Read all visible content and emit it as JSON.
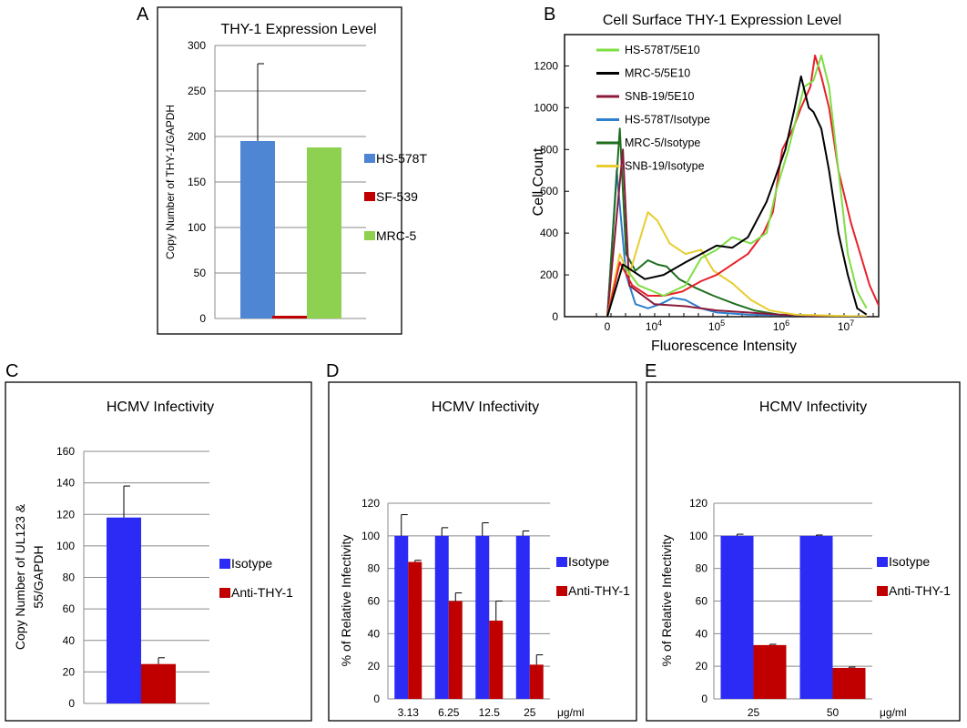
{
  "colors": {
    "hs578t": "#4f86d4",
    "sf539": "#c00000",
    "mrc5": "#8ed150",
    "isotype": "#2b2bf5",
    "anti": "#c00000"
  },
  "panelB_colors": [
    "#7ede42",
    "#000000",
    "#8b1a3a",
    "#2e7fcc",
    "#1f6e1f",
    "#e8cc30"
  ],
  "panelB_extra_red": "#e8202a",
  "chart_data": [
    {
      "panel": "A",
      "type": "bar",
      "title": "THY-1  Expression Level",
      "ylabel": "Copy Number of THY-1/GAPDH",
      "ylim": [
        0,
        300
      ],
      "yticks": [
        "0",
        "50",
        "100",
        "150",
        "200",
        "250",
        "300"
      ],
      "series": [
        {
          "name": "HS-578T",
          "value": 195,
          "error": 85
        },
        {
          "name": "SF-539",
          "value": 3,
          "error": 0
        },
        {
          "name": "MRC-5",
          "value": 188,
          "error": 0
        }
      ],
      "grid": true,
      "legend": "right"
    },
    {
      "panel": "B",
      "type": "line",
      "title": "Cell Surface THY-1  Expression Level",
      "xlabel": "Fluorescence Intensity",
      "ylabel": "Cell Count",
      "xscale": "log",
      "yticks": [
        "0",
        "200",
        "400",
        "600",
        "800",
        "1000",
        "1200"
      ],
      "xtick_labels": [
        {
          "base": "0",
          "exp": ""
        },
        {
          "base": "10",
          "exp": "4"
        },
        {
          "base": "10",
          "exp": "5"
        },
        {
          "base": "10",
          "exp": "6"
        },
        {
          "base": "10",
          "exp": "7"
        }
      ],
      "legend": "top-left",
      "series": [
        {
          "name": "HS-578T/5E10",
          "points": [
            [
              0,
              0
            ],
            [
              0.5,
              250
            ],
            [
              1,
              150
            ],
            [
              1.8,
              100
            ],
            [
              2.5,
              150
            ],
            [
              3,
              280
            ],
            [
              3.5,
              320
            ],
            [
              4,
              380
            ],
            [
              4.6,
              350
            ],
            [
              5.1,
              400
            ],
            [
              5.4,
              600
            ],
            [
              5.8,
              800
            ],
            [
              6.3,
              1100
            ],
            [
              6.6,
              1130
            ],
            [
              6.85,
              1250
            ],
            [
              7.1,
              1100
            ],
            [
              7.4,
              700
            ],
            [
              7.7,
              300
            ],
            [
              8.0,
              120
            ],
            [
              8.3,
              40
            ]
          ]
        },
        {
          "name": "MRC-5/5E10",
          "points": [
            [
              0,
              0
            ],
            [
              0.5,
              250
            ],
            [
              1.2,
              180
            ],
            [
              1.8,
              200
            ],
            [
              2.5,
              260
            ],
            [
              3,
              300
            ],
            [
              3.5,
              340
            ],
            [
              4,
              330
            ],
            [
              4.5,
              380
            ],
            [
              5.1,
              550
            ],
            [
              5.7,
              800
            ],
            [
              6.0,
              1000
            ],
            [
              6.2,
              1150
            ],
            [
              6.45,
              1000
            ],
            [
              6.6,
              980
            ],
            [
              6.85,
              900
            ],
            [
              7.1,
              700
            ],
            [
              7.4,
              400
            ],
            [
              7.7,
              200
            ],
            [
              8.0,
              40
            ],
            [
              8.3,
              10
            ]
          ]
        },
        {
          "name": "SNB-19/5E10",
          "points": [
            [
              0,
              0
            ],
            [
              0.5,
              800
            ],
            [
              0.7,
              150
            ],
            [
              1.5,
              60
            ],
            [
              2.5,
              50
            ],
            [
              3.5,
              30
            ],
            [
              4.5,
              20
            ],
            [
              5.5,
              10
            ],
            [
              6.5,
              5
            ],
            [
              8.3,
              0
            ]
          ]
        },
        {
          "name": "HS-578T/Isotype",
          "points": [
            [
              0,
              0
            ],
            [
              0.3,
              700
            ],
            [
              0.45,
              450
            ],
            [
              0.6,
              200
            ],
            [
              0.9,
              60
            ],
            [
              1.3,
              40
            ],
            [
              1.7,
              60
            ],
            [
              2.1,
              90
            ],
            [
              2.5,
              80
            ],
            [
              3,
              40
            ],
            [
              3.5,
              20
            ],
            [
              4.5,
              10
            ],
            [
              8.3,
              0
            ]
          ]
        },
        {
          "name": "MRC-5/Isotype",
          "points": [
            [
              0,
              0
            ],
            [
              0.4,
              900
            ],
            [
              0.6,
              300
            ],
            [
              0.9,
              220
            ],
            [
              1.3,
              270
            ],
            [
              1.6,
              250
            ],
            [
              1.9,
              240
            ],
            [
              2.3,
              180
            ],
            [
              2.8,
              140
            ],
            [
              3.4,
              100
            ],
            [
              4.1,
              60
            ],
            [
              4.7,
              30
            ],
            [
              5.5,
              10
            ],
            [
              8.3,
              0
            ]
          ]
        },
        {
          "name": "SNB-19/Isotype",
          "points": [
            [
              0,
              0
            ],
            [
              0.4,
              300
            ],
            [
              0.7,
              200
            ],
            [
              1,
              350
            ],
            [
              1.3,
              500
            ],
            [
              1.6,
              460
            ],
            [
              2,
              350
            ],
            [
              2.5,
              300
            ],
            [
              3,
              320
            ],
            [
              3.4,
              220
            ],
            [
              4,
              160
            ],
            [
              4.6,
              80
            ],
            [
              5.2,
              30
            ],
            [
              6,
              10
            ],
            [
              8.3,
              0
            ]
          ]
        },
        {
          "name": "",
          "points": [
            [
              0,
              0
            ],
            [
              0.4,
              260
            ],
            [
              0.8,
              150
            ],
            [
              1.3,
              100
            ],
            [
              1.8,
              100
            ],
            [
              2.4,
              120
            ],
            [
              3,
              170
            ],
            [
              3.5,
              200
            ],
            [
              4,
              250
            ],
            [
              4.5,
              300
            ],
            [
              5,
              400
            ],
            [
              5.3,
              500
            ],
            [
              5.6,
              800
            ],
            [
              5.95,
              900
            ],
            [
              6.2,
              1000
            ],
            [
              6.5,
              1100
            ],
            [
              6.65,
              1250
            ],
            [
              6.85,
              1150
            ],
            [
              7.1,
              1000
            ],
            [
              7.4,
              700
            ],
            [
              7.8,
              450
            ],
            [
              8.1,
              300
            ],
            [
              8.4,
              150
            ],
            [
              8.7,
              50
            ]
          ]
        }
      ]
    },
    {
      "panel": "C",
      "type": "bar",
      "title": "HCMV Infectivity",
      "ylabel_lines": [
        "Copy Number of UL123 &",
        "55/GAPDH"
      ],
      "ylim": [
        0,
        160
      ],
      "yticks": [
        "0",
        "20",
        "40",
        "60",
        "80",
        "100",
        "120",
        "140",
        "160"
      ],
      "series": [
        {
          "name": "Isotype",
          "value": 118,
          "error": 20
        },
        {
          "name": "Anti-THY-1",
          "value": 25,
          "error": 4
        }
      ],
      "grid": true,
      "legend": "right"
    },
    {
      "panel": "D",
      "type": "bar",
      "title": "HCMV Infectivity",
      "ylabel": "% of Relative Infectivity",
      "ylim": [
        0,
        120
      ],
      "yticks": [
        "0",
        "20",
        "40",
        "60",
        "80",
        "100",
        "120"
      ],
      "categories": [
        "3.13",
        "6.25",
        "12.5",
        "25"
      ],
      "unit_label": "μg/ml",
      "series": [
        {
          "name": "Isotype",
          "values": [
            100,
            100,
            100,
            100
          ],
          "errors": [
            13,
            5,
            8,
            3
          ]
        },
        {
          "name": "Anti-THY-1",
          "values": [
            84,
            60,
            48,
            21
          ],
          "errors": [
            1,
            5,
            12,
            6
          ]
        }
      ],
      "grid": true,
      "legend": "right"
    },
    {
      "panel": "E",
      "type": "bar",
      "title": "HCMV Infectivity",
      "ylabel": "% of Relative Infectivity",
      "ylim": [
        0,
        120
      ],
      "yticks": [
        "0",
        "20",
        "40",
        "60",
        "80",
        "100",
        "120"
      ],
      "categories": [
        "25",
        "50"
      ],
      "unit_label": "μg/ml",
      "series": [
        {
          "name": "Isotype",
          "values": [
            100,
            100
          ],
          "errors": [
            1,
            0.5
          ]
        },
        {
          "name": "Anti-THY-1",
          "values": [
            33,
            19
          ],
          "errors": [
            0.5,
            0.5
          ]
        }
      ],
      "grid": true,
      "legend": "right"
    }
  ]
}
